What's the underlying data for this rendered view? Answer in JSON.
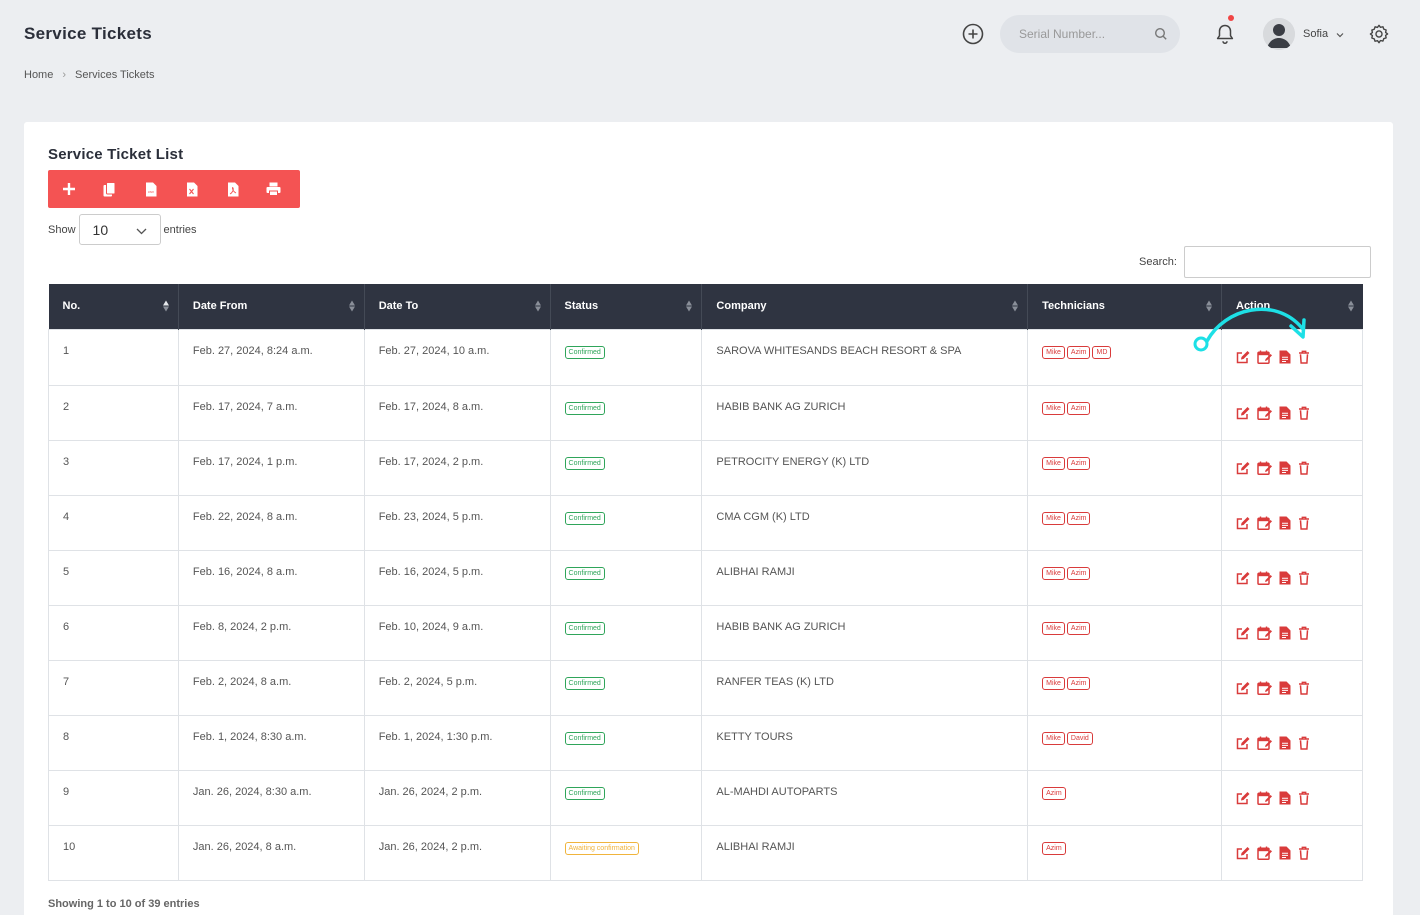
{
  "header": {
    "title": "Service Tickets",
    "serial_placeholder": "Serial Number...",
    "user_name": "Sofia"
  },
  "breadcrumb": {
    "home": "Home",
    "current": "Services Tickets"
  },
  "card": {
    "title": "Service Ticket List",
    "show_label": "Show",
    "entries_value": "10",
    "entries_label": "entries",
    "search_label": "Search:",
    "info": "Showing 1 to 10 of 39 entries"
  },
  "toolbar": [
    "add-icon",
    "copy-icon",
    "csv-icon",
    "excel-icon",
    "pdf-icon",
    "print-icon"
  ],
  "columns": [
    "No.",
    "Date From",
    "Date To",
    "Status",
    "Company",
    "Technicians",
    "Action"
  ],
  "rows": [
    {
      "no": "1",
      "from": "Feb. 27, 2024, 8:24 a.m.",
      "to": "Feb. 27, 2024, 10 a.m.",
      "status": "Confirmed",
      "company": "SAROVA WHITESANDS BEACH RESORT & SPA",
      "techs": [
        "Mike",
        "Azim",
        "MD"
      ]
    },
    {
      "no": "2",
      "from": "Feb. 17, 2024, 7 a.m.",
      "to": "Feb. 17, 2024, 8 a.m.",
      "status": "Confirmed",
      "company": "HABIB BANK AG ZURICH",
      "techs": [
        "Mike",
        "Azim"
      ]
    },
    {
      "no": "3",
      "from": "Feb. 17, 2024, 1 p.m.",
      "to": "Feb. 17, 2024, 2 p.m.",
      "status": "Confirmed",
      "company": "PETROCITY ENERGY (K) LTD",
      "techs": [
        "Mike",
        "Azim"
      ]
    },
    {
      "no": "4",
      "from": "Feb. 22, 2024, 8 a.m.",
      "to": "Feb. 23, 2024, 5 p.m.",
      "status": "Confirmed",
      "company": "CMA CGM (K) LTD",
      "techs": [
        "Mike",
        "Azim"
      ]
    },
    {
      "no": "5",
      "from": "Feb. 16, 2024, 8 a.m.",
      "to": "Feb. 16, 2024, 5 p.m.",
      "status": "Confirmed",
      "company": "ALIBHAI RAMJI",
      "techs": [
        "Mike",
        "Azim"
      ]
    },
    {
      "no": "6",
      "from": "Feb. 8, 2024, 2 p.m.",
      "to": "Feb. 10, 2024, 9 a.m.",
      "status": "Confirmed",
      "company": "HABIB BANK AG ZURICH",
      "techs": [
        "Mike",
        "Azim"
      ]
    },
    {
      "no": "7",
      "from": "Feb. 2, 2024, 8 a.m.",
      "to": "Feb. 2, 2024, 5 p.m.",
      "status": "Confirmed",
      "company": "RANFER TEAS (K) LTD",
      "techs": [
        "Mike",
        "Azim"
      ]
    },
    {
      "no": "8",
      "from": "Feb. 1, 2024, 8:30 a.m.",
      "to": "Feb. 1, 2024, 1:30 p.m.",
      "status": "Confirmed",
      "company": "KETTY TOURS",
      "techs": [
        "Mike",
        "David"
      ]
    },
    {
      "no": "9",
      "from": "Jan. 26, 2024, 8:30 a.m.",
      "to": "Jan. 26, 2024, 2 p.m.",
      "status": "Confirmed",
      "company": "AL-MAHDI AUTOPARTS",
      "techs": [
        "Azim"
      ]
    },
    {
      "no": "10",
      "from": "Jan. 26, 2024, 8 a.m.",
      "to": "Jan. 26, 2024, 2 p.m.",
      "status": "Awaiting confirmation",
      "company": "ALIBHAI RAMJI",
      "techs": [
        "Azim"
      ]
    }
  ],
  "colors": {
    "accent": "#f45353",
    "header_bg": "#2f3441",
    "confirmed": "#2fa55a",
    "awaiting": "#f0b43c",
    "tech": "#d93b3b",
    "hint_arrow": "#1de0e6"
  }
}
